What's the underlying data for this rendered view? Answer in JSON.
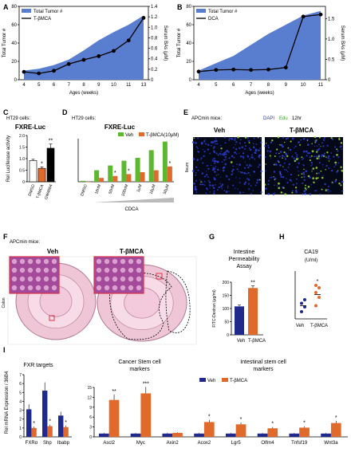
{
  "panels": {
    "A": "A",
    "B": "B",
    "C": "C",
    "D": "D",
    "E": "E",
    "F": "F",
    "G": "G",
    "H": "H",
    "I": "I"
  },
  "colors": {
    "area": "#5a7ecf",
    "line": "#000000",
    "veh": "#1f2a8c",
    "tbmca": "#e06a2b",
    "dmso": "#ffffff",
    "gw": "#000000",
    "green": "#5cb82e",
    "microRed": "#d9354a"
  },
  "chart_data": [
    {
      "id": "A",
      "type": "area",
      "legend": [
        "Total Tumor #",
        "T-βMCA"
      ],
      "xlabel": "Ages (weeks)",
      "ylabel": "Total Tumor #",
      "ylabel2": "Serum BAs (μM)",
      "categories": [
        "4",
        "5",
        "6",
        "7",
        "8",
        "9",
        "10",
        "11",
        "13"
      ],
      "area": [
        10,
        12,
        16,
        22,
        32,
        43,
        52,
        60,
        70
      ],
      "line": [
        0.15,
        0.12,
        0.17,
        0.3,
        0.38,
        0.45,
        0.55,
        0.75,
        1.18
      ],
      "ylim": [
        0,
        80
      ],
      "y2lim": [
        0,
        1.4
      ],
      "yticks": [
        "0",
        "20",
        "40",
        "60",
        "80"
      ],
      "y2ticks": [
        "0",
        "0.2",
        "0.4",
        "0.6",
        "0.8",
        "1.0",
        "1.2",
        "1.4"
      ]
    },
    {
      "id": "B",
      "type": "area",
      "legend": [
        "Total Tumor #",
        "DCA"
      ],
      "xlabel": "Ages (weeks)",
      "ylabel": "Total Tumor #",
      "ylabel2": "Serum BAs (μM)",
      "categories": [
        "4",
        "5",
        "6",
        "7",
        "8",
        "9",
        "10",
        "11"
      ],
      "area": [
        10,
        18,
        26,
        38,
        50,
        60,
        70,
        75
      ],
      "line": [
        0.2,
        0.24,
        0.25,
        0.24,
        0.25,
        0.3,
        1.55,
        1.6
      ],
      "ylim": [
        0,
        80
      ],
      "y2lim": [
        0,
        1.8
      ],
      "yticks": [
        "0",
        "20",
        "40",
        "60",
        "80"
      ],
      "y2ticks": [
        "0",
        "0.5",
        "1.0",
        "1.5"
      ]
    },
    {
      "id": "C",
      "type": "bar",
      "context": "HT29 cells:",
      "title": "FXRE-Luc",
      "ylabel": "Rel Luciferase activity",
      "categories": [
        "DMSO",
        "T-βMCA",
        "GW4064"
      ],
      "values": [
        0.92,
        0.58,
        1.45
      ],
      "errors": [
        0.05,
        0.06,
        0.18
      ],
      "sig": [
        "",
        "*",
        "**"
      ],
      "ylim": [
        0,
        2
      ],
      "yticks": [
        "0",
        "0.5",
        "1.0",
        "1.5",
        "2.0"
      ]
    },
    {
      "id": "D",
      "type": "bar",
      "context": "HT29 cells:",
      "title": "FXRE-Luc",
      "xlabel": "CDCA",
      "series": [
        {
          "name": "Veh",
          "values": [
            0.01,
            0.12,
            0.17,
            0.22,
            0.25,
            0.33,
            0.42
          ]
        },
        {
          "name": "T-βMCA(10μM)",
          "values": [
            0.0,
            0.04,
            0.06,
            0.08,
            0.1,
            0.12,
            0.16
          ]
        }
      ],
      "categories": [
        "DMSO",
        "10nM",
        "50nM",
        "100nM",
        "1μM",
        "10μM",
        "50μM"
      ],
      "sig": [
        "",
        "",
        "*",
        "*",
        "",
        "",
        "*"
      ],
      "ylim": [
        0,
        0.45
      ],
      "yticks": [
        "0",
        "0.1",
        "0.2",
        "0.3",
        "0.4"
      ]
    },
    {
      "id": "G",
      "type": "bar",
      "title": "Intestine Permeability Assay",
      "ylabel": "FITC-Dextran (μg/ml)",
      "categories": [
        "Veh",
        "T-βMCA"
      ],
      "values": [
        108,
        178
      ],
      "errors": [
        5,
        8
      ],
      "sig": [
        "",
        "**"
      ],
      "ylim": [
        0,
        200
      ],
      "yticks": [
        "0",
        "50",
        "100",
        "150",
        "200"
      ]
    },
    {
      "id": "H",
      "type": "scatter",
      "title": "CA19",
      "subtitle": "(U/ml)",
      "categories": [
        "Veh",
        "T-βMCA"
      ],
      "points": [
        [
          0.3,
          0.5,
          0.65,
          0.8
        ],
        [
          0.55,
          0.9,
          1.1,
          1.3,
          1.4
        ]
      ],
      "means": [
        0.55,
        1.02
      ],
      "sig": [
        "",
        "*"
      ],
      "ylim": [
        0,
        2.0
      ],
      "yticks": [
        "0",
        "0.5",
        "1.0",
        "1.5",
        "2.0"
      ]
    },
    {
      "id": "I",
      "type": "bar",
      "ylabel": "Rel mRNA Expression / 36B4",
      "groups": [
        "FXR targets",
        "Cancer Stem cell markers",
        "Intestinal stem cell markers"
      ],
      "legend": [
        "Veh",
        "T-βMCA"
      ],
      "g1": {
        "categories": [
          "FXRα",
          "Shp",
          "Ibabp"
        ],
        "veh": [
          3.1,
          5.2,
          2.4
        ],
        "t": [
          1.0,
          1.2,
          1.1
        ],
        "sig": [
          "*",
          "*",
          "*"
        ],
        "ylim": [
          0,
          7
        ],
        "yticks": [
          "0",
          "1",
          "2",
          "3",
          "4",
          "5",
          "6",
          "7"
        ]
      },
      "g2": {
        "categories": [
          "Ascl2",
          "Myc",
          "Axin2",
          "Acox2",
          "Lgr5",
          "Olfm4",
          "Tnfsf19",
          "Wnt3a"
        ],
        "veh": [
          1.0,
          1.0,
          1.0,
          1.0,
          1.0,
          1.0,
          1.0,
          1.0
        ],
        "t": [
          11.2,
          13.2,
          1.2,
          4.5,
          3.8,
          2.6,
          2.8,
          4.2
        ],
        "sig": [
          "**",
          "***",
          "",
          "*",
          "*",
          "*",
          "*",
          "*"
        ],
        "ylim": [
          0,
          15
        ],
        "yticks": [
          "0",
          "3",
          "6",
          "9",
          "12",
          "15"
        ]
      }
    }
  ],
  "panelE": {
    "context": "APCmin mice:",
    "stains": [
      "DAPI",
      "Edu",
      "12hr"
    ],
    "cols": [
      "Veh",
      "T-βMCA"
    ],
    "row": "Ileum"
  },
  "panelF": {
    "context": "APCmin mice:",
    "cols": [
      "Veh",
      "T-βMCA"
    ],
    "row": "Colon"
  }
}
